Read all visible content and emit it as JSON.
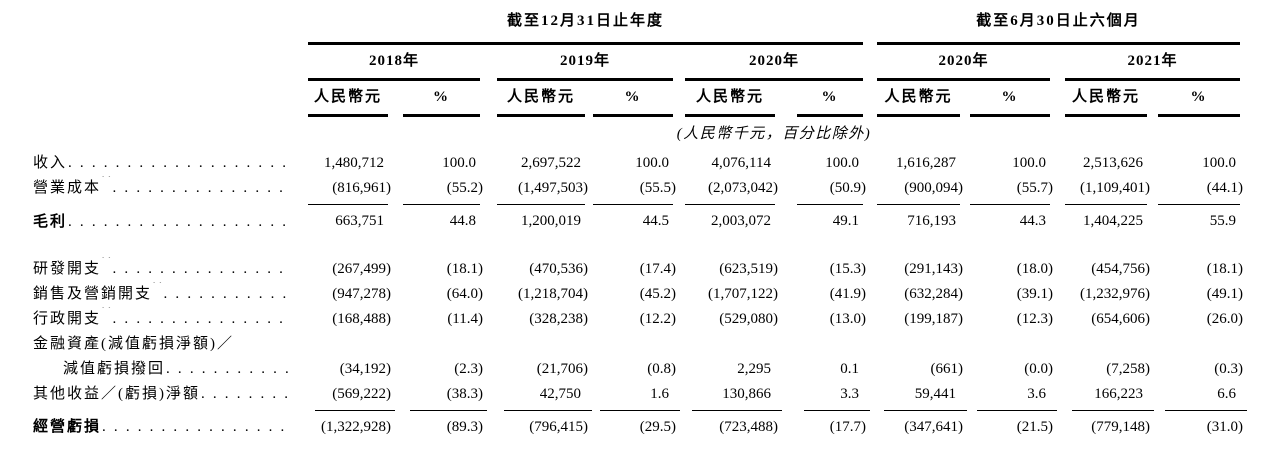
{
  "table": {
    "periods": [
      {
        "title": "截至12月31日止年度",
        "years": [
          "2018年",
          "2019年",
          "2020年"
        ]
      },
      {
        "title": "截至6月30日止六個月",
        "years": [
          "2020年",
          "2021年"
        ]
      }
    ],
    "column_headers": {
      "amount": "人民幣元",
      "percent": "%"
    },
    "unit_note": "(人民幣千元，百分比除外)",
    "rows": [
      {
        "label": "收入",
        "sup": "",
        "bold": false,
        "indent": false,
        "leader": true,
        "topline": false,
        "cells": [
          "1,480,712",
          "100.0",
          "2,697,522",
          "100.0",
          "4,076,114",
          "100.0",
          "1,616,287",
          "100.0",
          "2,513,626",
          "100.0"
        ]
      },
      {
        "label": "營業成本",
        "sup": "(1)",
        "bold": false,
        "indent": false,
        "leader": true,
        "topline": false,
        "cells": [
          "(816,961)",
          "(55.2)",
          "(1,497,503)",
          "(55.5)",
          "(2,073,042)",
          "(50.9)",
          "(900,094)",
          "(55.7)",
          "(1,109,401)",
          "(44.1)"
        ]
      },
      {
        "label": "毛利",
        "sup": "",
        "bold": true,
        "indent": false,
        "leader": true,
        "topline": true,
        "cells": [
          "663,751",
          "44.8",
          "1,200,019",
          "44.5",
          "2,003,072",
          "49.1",
          "716,193",
          "44.3",
          "1,404,225",
          "55.9"
        ]
      },
      {
        "spacer": true
      },
      {
        "label": "研發開支",
        "sup": "(1)",
        "bold": false,
        "indent": false,
        "leader": true,
        "topline": false,
        "cells": [
          "(267,499)",
          "(18.1)",
          "(470,536)",
          "(17.4)",
          "(623,519)",
          "(15.3)",
          "(291,143)",
          "(18.0)",
          "(454,756)",
          "(18.1)"
        ]
      },
      {
        "label": "銷售及營銷開支",
        "sup": "(1)",
        "bold": false,
        "indent": false,
        "leader": true,
        "topline": false,
        "cells": [
          "(947,278)",
          "(64.0)",
          "(1,218,704)",
          "(45.2)",
          "(1,707,122)",
          "(41.9)",
          "(632,284)",
          "(39.1)",
          "(1,232,976)",
          "(49.1)"
        ]
      },
      {
        "label": "行政開支",
        "sup": "(1)",
        "bold": false,
        "indent": false,
        "leader": true,
        "topline": false,
        "cells": [
          "(168,488)",
          "(11.4)",
          "(328,238)",
          "(12.2)",
          "(529,080)",
          "(13.0)",
          "(199,187)",
          "(12.3)",
          "(654,606)",
          "(26.0)"
        ]
      },
      {
        "label": "金融資產(減值虧損淨額)／",
        "sup": "",
        "bold": false,
        "indent": false,
        "leader": false,
        "topline": false,
        "cells": []
      },
      {
        "label": "減值虧損撥回",
        "sup": "",
        "bold": false,
        "indent": true,
        "leader": true,
        "topline": false,
        "cells": [
          "(34,192)",
          "(2.3)",
          "(21,706)",
          "(0.8)",
          "2,295",
          "0.1",
          "(661)",
          "(0.0)",
          "(7,258)",
          "(0.3)"
        ]
      },
      {
        "label": "其他收益／(虧損)淨額",
        "sup": "",
        "bold": false,
        "indent": false,
        "leader": true,
        "topline": false,
        "cells": [
          "(569,222)",
          "(38.3)",
          "42,750",
          "1.6",
          "130,866",
          "3.3",
          "59,441",
          "3.6",
          "166,223",
          "6.6"
        ]
      },
      {
        "label": "經營虧損",
        "sup": "",
        "bold": true,
        "indent": false,
        "leader": true,
        "topline": true,
        "cells": [
          "(1,322,928)",
          "(89.3)",
          "(796,415)",
          "(29.5)",
          "(723,488)",
          "(17.7)",
          "(347,641)",
          "(21.5)",
          "(779,148)",
          "(31.0)"
        ]
      }
    ]
  },
  "colors": {
    "text": "#000000",
    "rule": "#000000",
    "background": "#ffffff"
  }
}
